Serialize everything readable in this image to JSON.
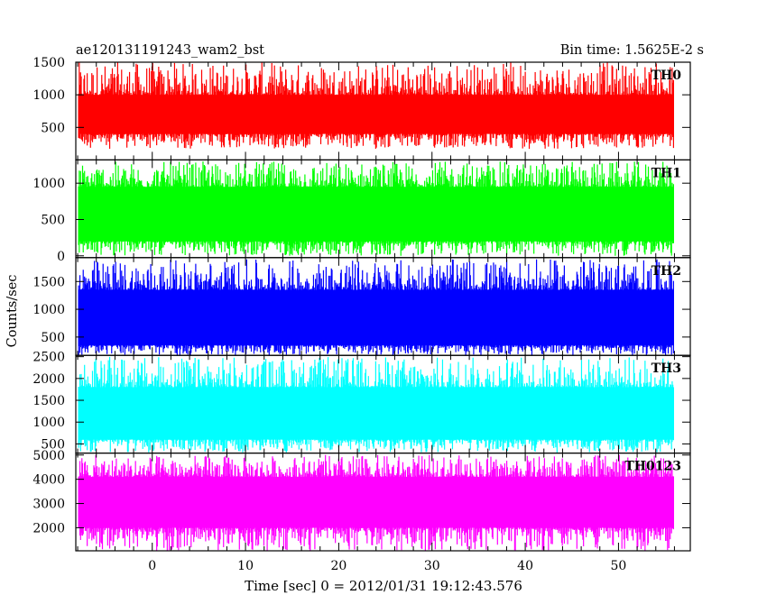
{
  "header": {
    "title": "ae120131191243_wam2_bst",
    "bin_time": "Bin time: 1.5625E-2 s"
  },
  "chart_data": {
    "type": "line",
    "xlabel": "Time [sec] 0 = 2012/01/31 19:12:43.576",
    "ylabel": "Counts/sec",
    "xlim": [
      -8.2,
      57.7
    ],
    "x_ticks": [
      0,
      10,
      20,
      30,
      40,
      50
    ],
    "x_tick_labels": [
      "0",
      "10",
      "20",
      "30",
      "40",
      "50"
    ],
    "x_data_range": [
      -7.9,
      55.9
    ],
    "grid": false,
    "panels": [
      {
        "name": "TH0",
        "color": "#ff0000",
        "ylim": [
          1,
          1500
        ],
        "y_ticks": [
          500,
          1000,
          1500
        ],
        "y_tick_labels": [
          "500",
          "1000",
          "1500"
        ],
        "band": {
          "low": 170,
          "lower_core": 400,
          "upper_core": 1000,
          "high": 1500
        }
      },
      {
        "name": "TH1",
        "color": "#00ff00",
        "ylim": [
          -25,
          1320
        ],
        "y_ticks": [
          0,
          500,
          1000
        ],
        "y_tick_labels": [
          "0",
          "500",
          "1000"
        ],
        "band": {
          "low": 0,
          "lower_core": 200,
          "upper_core": 950,
          "high": 1300
        }
      },
      {
        "name": "TH2",
        "color": "#0000ff",
        "ylim": [
          170,
          1930
        ],
        "y_ticks": [
          500,
          1000,
          1500
        ],
        "y_tick_labels": [
          "500",
          "1000",
          "1500"
        ],
        "band": {
          "low": 170,
          "lower_core": 350,
          "upper_core": 1350,
          "high": 1900
        }
      },
      {
        "name": "TH3",
        "color": "#00ffff",
        "ylim": [
          290,
          2530
        ],
        "y_ticks": [
          500,
          1000,
          1500,
          2000,
          2500
        ],
        "y_tick_labels": [
          "500",
          "1000",
          "1500",
          "2000",
          "2500"
        ],
        "band": {
          "low": 300,
          "lower_core": 600,
          "upper_core": 1800,
          "high": 2500
        }
      },
      {
        "name": "TH0123",
        "color": "#ff00ff",
        "ylim": [
          1050,
          5080
        ],
        "y_ticks": [
          2000,
          3000,
          4000,
          5000
        ],
        "y_tick_labels": [
          "2000",
          "3000",
          "4000",
          "5000"
        ],
        "band": {
          "low": 1050,
          "lower_core": 2000,
          "upper_core": 4100,
          "high": 5000
        }
      }
    ]
  }
}
